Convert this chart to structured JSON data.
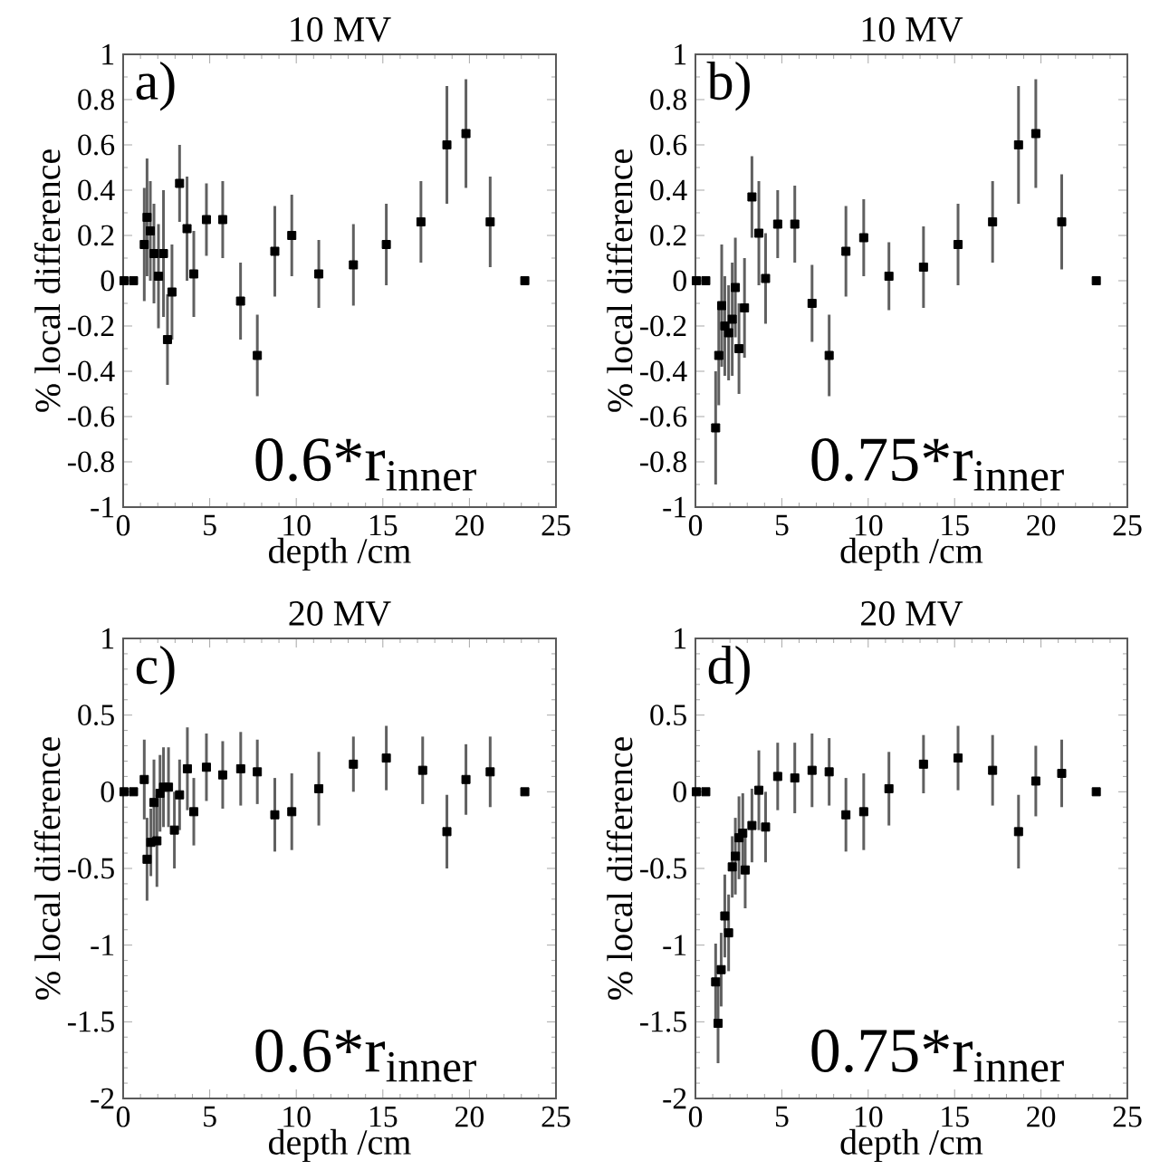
{
  "chart_data": [
    {
      "type": "scatter",
      "title": "10 MV",
      "xlabel": "depth /cm",
      "ylabel": "% local difference",
      "annotations": [
        "a)",
        "0.6*r$_{inner}$"
      ],
      "xlim": [
        0,
        25
      ],
      "ylim": [
        -1,
        1
      ],
      "xticks": [
        0,
        5,
        10,
        15,
        20,
        25
      ],
      "yticks": [
        -1,
        -0.8,
        -0.6,
        -0.4,
        -0.2,
        0,
        0.2,
        0.4,
        0.6,
        0.8,
        1
      ],
      "marker": "square",
      "series": [
        {
          "color": "#000000",
          "x": [
            0.05,
            0.6,
            1.22,
            1.38,
            1.57,
            1.78,
            2.04,
            2.33,
            2.56,
            2.82,
            3.26,
            3.69,
            4.08,
            4.81,
            5.75,
            6.78,
            7.75,
            8.76,
            9.74,
            11.3,
            13.3,
            15.2,
            17.2,
            18.7,
            19.8,
            21.2,
            23.2
          ],
          "values": [
            0,
            0,
            0.16,
            0.28,
            0.22,
            0.12,
            0.02,
            0.12,
            -0.26,
            -0.05,
            0.43,
            0.23,
            0.03,
            0.27,
            0.27,
            -0.09,
            -0.33,
            0.13,
            0.2,
            0.03,
            0.07,
            0.16,
            0.26,
            0.6,
            0.65,
            0.26,
            0
          ],
          "errors": [
            null,
            null,
            0.25,
            0.26,
            0.22,
            0.22,
            0.23,
            0.28,
            0.2,
            0.21,
            0.17,
            0.23,
            0.19,
            0.16,
            0.17,
            0.17,
            0.18,
            0.2,
            0.18,
            0.15,
            0.18,
            0.18,
            0.18,
            0.26,
            0.24,
            0.2,
            null
          ]
        }
      ]
    },
    {
      "type": "scatter",
      "title": "10 MV",
      "xlabel": "depth /cm",
      "ylabel": "% local difference",
      "annotations": [
        "b)",
        "0.75*r$_{inner}$"
      ],
      "xlim": [
        0,
        25
      ],
      "ylim": [
        -1,
        1
      ],
      "xticks": [
        0,
        5,
        10,
        15,
        20,
        25
      ],
      "yticks": [
        -1,
        -0.8,
        -0.6,
        -0.4,
        -0.2,
        0,
        0.2,
        0.4,
        0.6,
        0.8,
        1
      ],
      "marker": "square",
      "series": [
        {
          "color": "#000000",
          "x": [
            0.05,
            0.6,
            1.17,
            1.35,
            1.52,
            1.7,
            1.92,
            2.13,
            2.31,
            2.52,
            2.84,
            3.27,
            3.67,
            4.06,
            4.76,
            5.75,
            6.75,
            7.74,
            8.71,
            9.74,
            11.2,
            13.2,
            15.2,
            17.2,
            18.7,
            19.7,
            21.2,
            23.2
          ],
          "values": [
            0,
            0,
            -0.65,
            -0.33,
            -0.11,
            -0.2,
            -0.23,
            -0.17,
            -0.03,
            -0.3,
            -0.12,
            0.37,
            0.21,
            0.01,
            0.25,
            0.25,
            -0.1,
            -0.33,
            0.13,
            0.19,
            0.02,
            0.06,
            0.16,
            0.26,
            0.6,
            0.65,
            0.26,
            0
          ],
          "errors": [
            null,
            null,
            0.25,
            0.22,
            0.27,
            0.22,
            0.21,
            0.25,
            0.22,
            0.2,
            0.22,
            0.18,
            0.23,
            0.2,
            0.15,
            0.17,
            0.17,
            0.18,
            0.2,
            0.17,
            0.15,
            0.18,
            0.18,
            0.18,
            0.26,
            0.24,
            0.21,
            null
          ]
        }
      ]
    },
    {
      "type": "scatter",
      "title": "20 MV",
      "xlabel": "depth /cm",
      "ylabel": "% local difference",
      "annotations": [
        "c)",
        "0.6*r$_{inner}$"
      ],
      "xlim": [
        0,
        25
      ],
      "ylim": [
        -2,
        1
      ],
      "xticks": [
        0,
        5,
        10,
        15,
        20,
        25
      ],
      "yticks": [
        -2,
        -1.5,
        -1,
        -0.5,
        0,
        0.5,
        1
      ],
      "marker": "square",
      "series": [
        {
          "color": "#000000",
          "x": [
            0.05,
            0.6,
            1.22,
            1.38,
            1.6,
            1.78,
            1.95,
            2.13,
            2.33,
            2.62,
            2.96,
            3.26,
            3.71,
            4.08,
            4.81,
            5.75,
            6.79,
            7.75,
            8.76,
            9.74,
            11.3,
            13.3,
            15.2,
            17.3,
            18.7,
            19.8,
            21.2,
            23.2
          ],
          "values": [
            0,
            0,
            0.08,
            -0.44,
            -0.33,
            -0.07,
            -0.32,
            -0.01,
            0.03,
            0.03,
            -0.25,
            -0.02,
            0.15,
            -0.13,
            0.16,
            0.11,
            0.15,
            0.13,
            -0.15,
            -0.13,
            0.02,
            0.18,
            0.22,
            0.14,
            -0.26,
            0.08,
            0.13,
            0
          ],
          "errors": [
            null,
            null,
            0.26,
            0.27,
            0.22,
            0.28,
            0.3,
            0.25,
            0.26,
            0.26,
            0.25,
            0.23,
            0.27,
            0.22,
            0.22,
            0.22,
            0.24,
            0.21,
            0.24,
            0.25,
            0.24,
            0.18,
            0.21,
            0.22,
            0.24,
            0.23,
            0.23,
            null
          ]
        }
      ]
    },
    {
      "type": "scatter",
      "title": "20 MV",
      "xlabel": "depth /cm",
      "ylabel": "% local difference",
      "annotations": [
        "d)",
        "0.75*r$_{inner}$"
      ],
      "xlim": [
        0,
        25
      ],
      "ylim": [
        -2,
        1
      ],
      "xticks": [
        0,
        5,
        10,
        15,
        20,
        25
      ],
      "yticks": [
        -2,
        -1.5,
        -1,
        -0.5,
        0,
        0.5,
        1
      ],
      "marker": "square",
      "series": [
        {
          "color": "#000000",
          "x": [
            0.05,
            0.6,
            1.17,
            1.31,
            1.49,
            1.7,
            1.92,
            2.13,
            2.31,
            2.52,
            2.74,
            2.88,
            3.27,
            3.67,
            4.06,
            4.76,
            5.75,
            6.75,
            7.74,
            8.71,
            9.74,
            11.2,
            13.2,
            15.2,
            17.2,
            18.7,
            19.7,
            21.2,
            23.2
          ],
          "values": [
            0,
            0,
            -1.24,
            -1.51,
            -1.16,
            -0.81,
            -0.92,
            -0.49,
            -0.42,
            -0.3,
            -0.27,
            -0.51,
            -0.22,
            0.01,
            -0.23,
            0.1,
            0.09,
            0.14,
            0.13,
            -0.15,
            -0.13,
            0.02,
            0.18,
            0.22,
            0.14,
            -0.26,
            0.07,
            0.12,
            0
          ],
          "errors": [
            null,
            null,
            0.25,
            0.26,
            0.24,
            0.27,
            0.25,
            0.2,
            0.25,
            0.27,
            0.26,
            0.25,
            0.24,
            0.26,
            0.23,
            0.22,
            0.23,
            0.24,
            0.22,
            0.24,
            0.25,
            0.24,
            0.19,
            0.21,
            0.23,
            0.24,
            0.23,
            0.22,
            null
          ]
        }
      ]
    }
  ]
}
